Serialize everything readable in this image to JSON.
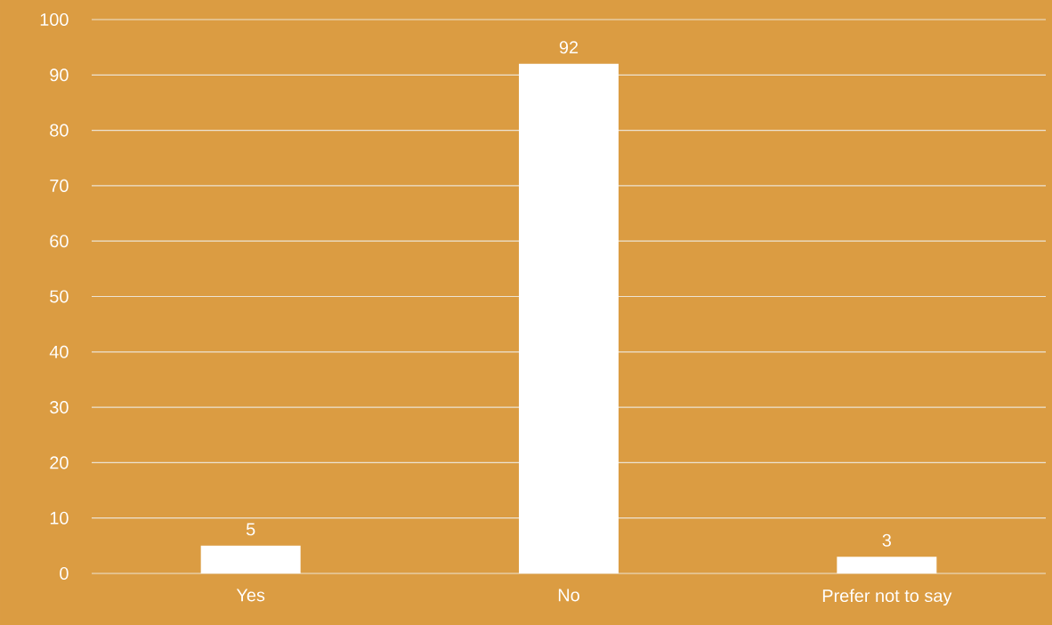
{
  "chart_data": {
    "type": "bar",
    "categories": [
      "Yes",
      "No",
      "Prefer not to say"
    ],
    "values": [
      5,
      92,
      3
    ],
    "color": "#ffffff",
    "ylim": [
      0,
      100
    ],
    "yticks": [
      0,
      10,
      20,
      30,
      40,
      50,
      60,
      70,
      80,
      90,
      100
    ],
    "grid": "y",
    "data_labels": true
  }
}
